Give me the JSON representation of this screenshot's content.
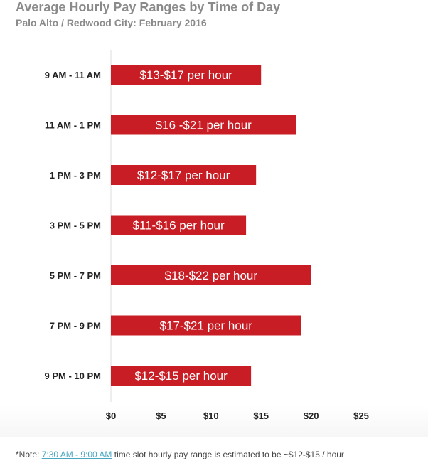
{
  "title": "Average Hourly Pay Ranges by Time of Day",
  "subtitle": "Palo Alto / Redwood City: February 2016",
  "chart_data": {
    "type": "bar",
    "orientation": "horizontal",
    "categories": [
      "9 AM - 11 AM",
      "11 AM - 1 PM",
      "1 PM - 3 PM",
      "3 PM - 5 PM",
      "5 PM - 7 PM",
      "7 PM - 9 PM",
      "9 PM - 10 PM"
    ],
    "values": [
      15,
      18.5,
      14.5,
      13.5,
      20,
      19,
      14
    ],
    "data_labels": [
      "$13-$17 per hour",
      "$16 -$21 per hour",
      "$12-$17 per hour",
      "$11-$16 per hour",
      "$18-$22 per hour",
      "$17-$21 per hour",
      "$12-$15 per hour"
    ],
    "x_ticks": [
      "$0",
      "$5",
      "$10",
      "$15",
      "$20",
      "$25"
    ],
    "x_tick_values": [
      0,
      5,
      10,
      15,
      20,
      25
    ],
    "xlim": [
      0,
      25
    ],
    "grid": false,
    "bar_color": "#c81d24",
    "label_color": "#ffffff"
  },
  "note": {
    "prefix": "*Note: ",
    "link_text": "7:30 AM - 9:00 AM",
    "suffix": " time slot hourly pay range is estimated to be ~$12-$15 / hour"
  }
}
